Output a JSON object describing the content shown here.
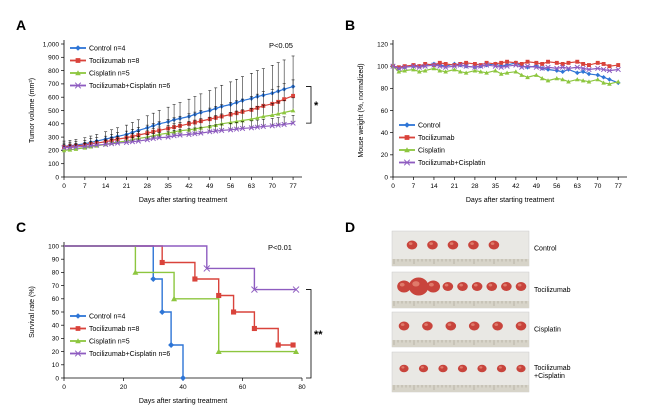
{
  "colors": {
    "control": "#2e75d6",
    "tocilizumab": "#d9433b",
    "cisplatin": "#8dc63f",
    "combo": "#8e5cc0",
    "axis": "#000000"
  },
  "chart_data": [
    {
      "id": "A",
      "panel_label": "A",
      "type": "line",
      "ylabel": "Tumor volume (mm³)",
      "xlabel": "Days after starting treatment",
      "ylim": [
        0,
        1000
      ],
      "yticks": [
        "0",
        "100",
        "200",
        "300",
        "400",
        "500",
        "600",
        "700",
        "800",
        "900",
        "1,000"
      ],
      "xlim": [
        0,
        80
      ],
      "xticks": [
        "0",
        "7",
        "14",
        "21",
        "28",
        "35",
        "42",
        "49",
        "56",
        "63",
        "70",
        "77"
      ],
      "annotation": "P<0.05",
      "significance": "*",
      "legend_position": "top-left",
      "x": [
        0,
        2,
        4,
        7,
        9,
        11,
        14,
        16,
        18,
        21,
        23,
        25,
        28,
        30,
        32,
        35,
        37,
        39,
        42,
        44,
        46,
        49,
        51,
        53,
        56,
        58,
        60,
        63,
        65,
        67,
        70,
        72,
        74,
        77
      ],
      "series": [
        {
          "name": "Control n=4",
          "key": "control",
          "marker": "diamond",
          "values": [
            230,
            235,
            240,
            250,
            260,
            270,
            285,
            295,
            305,
            320,
            335,
            350,
            370,
            385,
            400,
            415,
            430,
            440,
            455,
            470,
            485,
            500,
            515,
            530,
            545,
            560,
            575,
            590,
            605,
            615,
            630,
            645,
            660,
            680
          ],
          "errors": [
            40,
            40,
            42,
            45,
            48,
            50,
            55,
            60,
            65,
            70,
            75,
            80,
            90,
            95,
            100,
            110,
            115,
            120,
            130,
            135,
            140,
            150,
            155,
            160,
            170,
            175,
            180,
            190,
            195,
            200,
            210,
            215,
            220,
            230
          ]
        },
        {
          "name": "Tocilizumab n=8",
          "key": "tocilizumab",
          "marker": "square",
          "values": [
            225,
            230,
            235,
            240,
            250,
            255,
            265,
            275,
            285,
            295,
            305,
            315,
            330,
            340,
            350,
            365,
            375,
            385,
            400,
            410,
            420,
            435,
            445,
            455,
            470,
            480,
            490,
            505,
            520,
            535,
            550,
            565,
            585,
            610
          ],
          "errors": [
            30,
            32,
            34,
            36,
            38,
            40,
            42,
            45,
            48,
            50,
            53,
            56,
            60,
            62,
            65,
            68,
            70,
            72,
            75,
            78,
            80,
            83,
            86,
            88,
            90,
            93,
            96,
            100,
            103,
            106,
            110,
            113,
            116,
            120
          ]
        },
        {
          "name": "Cisplatin n=5",
          "key": "cisplatin",
          "marker": "triangle",
          "values": [
            200,
            205,
            210,
            220,
            228,
            235,
            245,
            255,
            262,
            270,
            280,
            290,
            300,
            310,
            320,
            330,
            340,
            348,
            355,
            362,
            370,
            380,
            390,
            400,
            410,
            418,
            425,
            435,
            445,
            455,
            465,
            475,
            485,
            500
          ],
          "errors": [
            30,
            31,
            32,
            34,
            36,
            38,
            40,
            42,
            44,
            46,
            48,
            50,
            52,
            54,
            56,
            58,
            60,
            62,
            64,
            66,
            68,
            70,
            72,
            74,
            76,
            78,
            80,
            82,
            84,
            86,
            88,
            90,
            92,
            95
          ]
        },
        {
          "name": "Tocilizumab+Cisplatin n=6",
          "key": "combo",
          "marker": "x",
          "values": [
            220,
            222,
            225,
            230,
            235,
            240,
            245,
            250,
            255,
            260,
            265,
            270,
            280,
            290,
            295,
            300,
            310,
            315,
            320,
            325,
            330,
            340,
            345,
            350,
            355,
            360,
            365,
            370,
            375,
            380,
            385,
            390,
            395,
            405
          ],
          "errors": [
            25,
            26,
            27,
            28,
            29,
            30,
            31,
            32,
            33,
            34,
            35,
            36,
            37,
            38,
            39,
            40,
            41,
            42,
            43,
            44,
            45,
            46,
            47,
            48,
            49,
            50,
            51,
            52,
            53,
            54,
            55,
            56,
            57,
            58
          ]
        }
      ]
    },
    {
      "id": "B",
      "panel_label": "B",
      "type": "line",
      "ylabel": "Mouse weight (%, normalized)",
      "xlabel": "Days after starting treatment",
      "ylim": [
        0,
        120
      ],
      "yticks": [
        "0",
        "20",
        "40",
        "60",
        "80",
        "100",
        "120"
      ],
      "xlim": [
        0,
        80
      ],
      "xticks": [
        "0",
        "7",
        "14",
        "21",
        "28",
        "35",
        "42",
        "49",
        "56",
        "63",
        "70",
        "77"
      ],
      "legend_position": "bottom-left",
      "x": [
        0,
        2,
        4,
        7,
        9,
        11,
        14,
        16,
        18,
        21,
        23,
        25,
        28,
        30,
        32,
        35,
        37,
        39,
        42,
        44,
        46,
        49,
        51,
        53,
        56,
        58,
        60,
        63,
        65,
        67,
        70,
        72,
        74,
        77
      ],
      "series": [
        {
          "name": "Control",
          "key": "control",
          "marker": "diamond",
          "values": [
            100,
            98,
            99,
            100,
            100,
            101,
            102,
            101,
            100,
            102,
            101,
            100,
            99,
            100,
            101,
            102,
            100,
            101,
            103,
            100,
            99,
            100,
            98,
            97,
            96,
            95,
            97,
            94,
            95,
            93,
            92,
            90,
            88,
            85
          ]
        },
        {
          "name": "Tocilizumab",
          "key": "tocilizumab",
          "marker": "square",
          "values": [
            100,
            99,
            100,
            101,
            100,
            102,
            101,
            103,
            102,
            101,
            102,
            103,
            102,
            101,
            103,
            102,
            103,
            104,
            103,
            102,
            104,
            103,
            102,
            104,
            103,
            102,
            103,
            104,
            102,
            101,
            103,
            102,
            100,
            101
          ]
        },
        {
          "name": "Cisplatin",
          "key": "cisplatin",
          "marker": "triangle",
          "values": [
            100,
            95,
            96,
            97,
            95,
            96,
            98,
            96,
            95,
            97,
            95,
            94,
            96,
            95,
            94,
            96,
            93,
            94,
            95,
            92,
            90,
            92,
            89,
            87,
            89,
            88,
            86,
            88,
            87,
            86,
            88,
            85,
            84,
            86
          ]
        },
        {
          "name": "Tocilizumab+Cisplatin",
          "key": "combo",
          "marker": "x",
          "values": [
            100,
            98,
            99,
            100,
            99,
            100,
            101,
            100,
            99,
            100,
            101,
            100,
            99,
            100,
            101,
            100,
            99,
            100,
            101,
            99,
            100,
            99,
            98,
            99,
            98,
            99,
            98,
            99,
            98,
            97,
            98,
            97,
            96,
            97
          ]
        }
      ]
    },
    {
      "id": "C",
      "panel_label": "C",
      "type": "line",
      "step": true,
      "ylabel": "Survival rate (%)",
      "xlabel": "Days after starting treatment",
      "ylim": [
        0,
        100
      ],
      "yticks": [
        "0",
        "10",
        "20",
        "30",
        "40",
        "50",
        "60",
        "70",
        "80",
        "90",
        "100"
      ],
      "xlim": [
        0,
        80
      ],
      "xticks": [
        "0",
        "20",
        "40",
        "60",
        "80"
      ],
      "annotation": "P<0.01",
      "significance": "**",
      "legend_position": "bottom-left",
      "series": [
        {
          "name": "Control n=4",
          "key": "control",
          "marker": "diamond",
          "x": [
            0,
            30,
            33,
            36,
            40
          ],
          "values": [
            100,
            75,
            50,
            25,
            0
          ]
        },
        {
          "name": "Tocilizumab n=8",
          "key": "tocilizumab",
          "marker": "square",
          "x": [
            0,
            30,
            33,
            44,
            48,
            52,
            57,
            64,
            68,
            72,
            77
          ],
          "values": [
            100,
            100,
            87.5,
            75,
            75,
            62.5,
            50,
            37.5,
            37.5,
            25,
            25
          ]
        },
        {
          "name": "Cisplatin n=5",
          "key": "cisplatin",
          "marker": "triangle",
          "x": [
            0,
            24,
            30,
            37,
            52,
            78
          ],
          "values": [
            100,
            80,
            80,
            60,
            20,
            20
          ]
        },
        {
          "name": "Tocilizumab+Cisplatin n=6",
          "key": "combo",
          "marker": "x",
          "x": [
            0,
            48,
            64,
            78
          ],
          "values": [
            100,
            83,
            67,
            67
          ]
        }
      ]
    }
  ],
  "photos": {
    "panel_label": "D",
    "rows": [
      {
        "label": "Control",
        "count": 5
      },
      {
        "label": "Tocilizumab",
        "count": 9
      },
      {
        "label": "Cisplatin",
        "count": 6
      },
      {
        "label": "Tocilizumab\n+Cisplatin",
        "count": 7
      }
    ]
  }
}
